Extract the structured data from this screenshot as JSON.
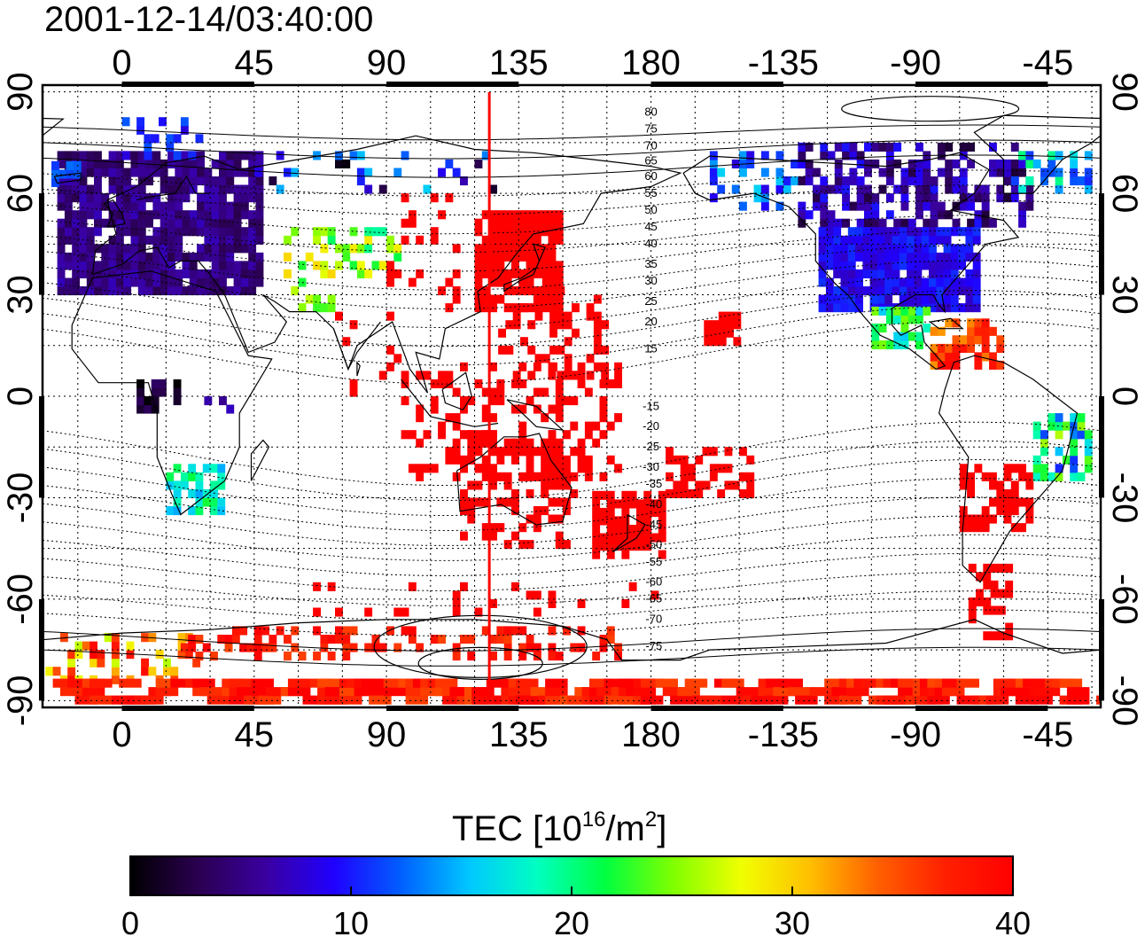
{
  "title": "2001-12-14/03:40:00",
  "map": {
    "lon_range": [
      -27,
      333
    ],
    "lat_range": [
      -92,
      92
    ],
    "top_lon_ticks": [
      {
        "value": 0,
        "label": "0"
      },
      {
        "value": 45,
        "label": "45"
      },
      {
        "value": 90,
        "label": "90"
      },
      {
        "value": 135,
        "label": "135"
      },
      {
        "value": 180,
        "label": "180"
      },
      {
        "value": 225,
        "label": "-135"
      },
      {
        "value": 270,
        "label": "-90"
      },
      {
        "value": 315,
        "label": "-45"
      }
    ],
    "bottom_lon_ticks": [
      {
        "value": 0,
        "label": "0"
      },
      {
        "value": 45,
        "label": "45"
      },
      {
        "value": 90,
        "label": "90"
      },
      {
        "value": 135,
        "label": "135"
      },
      {
        "value": 180,
        "label": "180"
      },
      {
        "value": 225,
        "label": "-135"
      },
      {
        "value": 270,
        "label": "-90"
      },
      {
        "value": 315,
        "label": "-45"
      }
    ],
    "lat_ticks": [
      {
        "value": 90,
        "label": "90"
      },
      {
        "value": 60,
        "label": "60"
      },
      {
        "value": 30,
        "label": "30"
      },
      {
        "value": 0,
        "label": "0"
      },
      {
        "value": -30,
        "label": "-30"
      },
      {
        "value": -60,
        "label": "-60"
      },
      {
        "value": -90,
        "label": "-90"
      }
    ],
    "grid_step_deg": 15,
    "red_meridian_lon": 125,
    "magnetic_lat_labels": [
      {
        "text": "80",
        "lon": 180,
        "lat": 83
      },
      {
        "text": "75",
        "lon": 180,
        "lat": 78
      },
      {
        "text": "70",
        "lon": 180,
        "lat": 73
      },
      {
        "text": "65",
        "lon": 180,
        "lat": 68.5
      },
      {
        "text": "60",
        "lon": 180,
        "lat": 64
      },
      {
        "text": "55",
        "lon": 180,
        "lat": 59
      },
      {
        "text": "50",
        "lon": 180,
        "lat": 54
      },
      {
        "text": "45",
        "lon": 180,
        "lat": 49
      },
      {
        "text": "40",
        "lon": 180,
        "lat": 44
      },
      {
        "text": "35",
        "lon": 180,
        "lat": 38
      },
      {
        "text": "30",
        "lon": 180,
        "lat": 33
      },
      {
        "text": "25",
        "lon": 180,
        "lat": 27
      },
      {
        "text": "20",
        "lon": 180,
        "lat": 21
      },
      {
        "text": "15",
        "lon": 180,
        "lat": 13
      },
      {
        "text": "-15",
        "lon": 180,
        "lat": -4
      },
      {
        "text": "-20",
        "lon": 180,
        "lat": -10
      },
      {
        "text": "-25",
        "lon": 180,
        "lat": -16
      },
      {
        "text": "-30",
        "lon": 180,
        "lat": -22
      },
      {
        "text": "-35",
        "lon": 181,
        "lat": -27
      },
      {
        "text": "-40",
        "lon": 181,
        "lat": -33
      },
      {
        "text": "-45",
        "lon": 181,
        "lat": -39
      },
      {
        "text": "-50",
        "lon": 181,
        "lat": -45
      },
      {
        "text": "-55",
        "lon": 181,
        "lat": -50
      },
      {
        "text": "-60",
        "lon": 181,
        "lat": -56
      },
      {
        "text": "-65",
        "lon": 181,
        "lat": -61
      },
      {
        "text": "-70",
        "lon": 181,
        "lat": -67
      },
      {
        "text": "-75",
        "lon": 181,
        "lat": -75
      }
    ]
  },
  "colorbar": {
    "label_main": "TEC  [10",
    "label_sup1": "16",
    "label_mid": "/m",
    "label_sup2": "2",
    "label_end": "]",
    "min": 0,
    "max": 40,
    "ticks": [
      {
        "value": 0,
        "label": "0"
      },
      {
        "value": 10,
        "label": "10"
      },
      {
        "value": 20,
        "label": "20"
      },
      {
        "value": 30,
        "label": "30"
      },
      {
        "value": 40,
        "label": "40"
      }
    ],
    "colors": [
      "#000000",
      "#2a0050",
      "#3a00a0",
      "#2000ff",
      "#0060ff",
      "#00c8ff",
      "#00ffc0",
      "#00ff40",
      "#80ff00",
      "#f0ff00",
      "#ffc000",
      "#ff6000",
      "#ff2000",
      "#ff0000"
    ]
  },
  "tec_regions": [
    {
      "name": "europe",
      "lon": [
        -22,
        48
      ],
      "lat": [
        30,
        72
      ],
      "tec": 5,
      "spread": 2,
      "density": 0.85
    },
    {
      "name": "europe-north",
      "lon": [
        0,
        30
      ],
      "lat": [
        70,
        82
      ],
      "tec": 10,
      "spread": 2,
      "density": 0.35
    },
    {
      "name": "iceland",
      "lon": [
        -24,
        -14
      ],
      "lat": [
        62,
        68
      ],
      "tec": 12,
      "spread": 1,
      "density": 0.6
    },
    {
      "name": "middle-east",
      "lon": [
        55,
        72
      ],
      "lat": [
        25,
        50
      ],
      "tec": 26,
      "spread": 4,
      "density": 0.35
    },
    {
      "name": "central-asia",
      "lon": [
        70,
        95
      ],
      "lat": [
        35,
        50
      ],
      "tec": 24,
      "spread": 5,
      "density": 0.45
    },
    {
      "name": "siberia",
      "lon": [
        45,
        130
      ],
      "lat": [
        60,
        72
      ],
      "tec": 8,
      "spread": 8,
      "density": 0.12
    },
    {
      "name": "china",
      "lon": [
        90,
        115
      ],
      "lat": [
        25,
        60
      ],
      "tec": 40,
      "spread": 0,
      "density": 0.25
    },
    {
      "name": "japan",
      "lon": [
        120,
        150
      ],
      "lat": [
        25,
        55
      ],
      "tec": 40,
      "spread": 0,
      "density": 0.85
    },
    {
      "name": "pacific-nw",
      "lon": [
        128,
        165
      ],
      "lat": [
        5,
        35
      ],
      "tec": 40,
      "spread": 0,
      "density": 0.3
    },
    {
      "name": "indonesia",
      "lon": [
        95,
        170
      ],
      "lat": [
        -25,
        10
      ],
      "tec": 40,
      "spread": 0,
      "density": 0.35
    },
    {
      "name": "australia",
      "lon": [
        115,
        155
      ],
      "lat": [
        -45,
        -10
      ],
      "tec": 40,
      "spread": 0,
      "density": 0.45
    },
    {
      "name": "new-zealand",
      "lon": [
        160,
        185
      ],
      "lat": [
        -48,
        -28
      ],
      "tec": 40,
      "spread": 0,
      "density": 0.75
    },
    {
      "name": "pacific-islands",
      "lon": [
        185,
        215
      ],
      "lat": [
        -30,
        -15
      ],
      "tec": 40,
      "spread": 0,
      "density": 0.45
    },
    {
      "name": "hawaii",
      "lon": [
        198,
        210
      ],
      "lat": [
        15,
        25
      ],
      "tec": 40,
      "spread": 0,
      "density": 0.8
    },
    {
      "name": "africa-central",
      "lon": [
        5,
        18
      ],
      "lat": [
        -5,
        5
      ],
      "tec": 2,
      "spread": 2,
      "density": 0.6
    },
    {
      "name": "africa-east",
      "lon": [
        28,
        40
      ],
      "lat": [
        -5,
        0
      ],
      "tec": 8,
      "spread": 3,
      "density": 0.4
    },
    {
      "name": "south-africa",
      "lon": [
        15,
        35
      ],
      "lat": [
        -35,
        -22
      ],
      "tec": 18,
      "spread": 4,
      "density": 0.7
    },
    {
      "name": "india",
      "lon": [
        70,
        95
      ],
      "lat": [
        0,
        25
      ],
      "tec": 40,
      "spread": 0,
      "density": 0.12
    },
    {
      "name": "alaska",
      "lon": [
        200,
        230
      ],
      "lat": [
        55,
        72
      ],
      "tec": 12,
      "spread": 4,
      "density": 0.35
    },
    {
      "name": "canada",
      "lon": [
        230,
        310
      ],
      "lat": [
        50,
        75
      ],
      "tec": 6,
      "spread": 4,
      "density": 0.55
    },
    {
      "name": "greenland",
      "lon": [
        300,
        330
      ],
      "lat": [
        60,
        72
      ],
      "tec": 15,
      "spread": 6,
      "density": 0.35
    },
    {
      "name": "usa",
      "lon": [
        237,
        290
      ],
      "lat": [
        25,
        50
      ],
      "tec": 9,
      "spread": 2,
      "density": 0.9
    },
    {
      "name": "mexico",
      "lon": [
        255,
        275
      ],
      "lat": [
        14,
        25
      ],
      "tec": 20,
      "spread": 5,
      "density": 0.7
    },
    {
      "name": "caribbean",
      "lon": [
        275,
        300
      ],
      "lat": [
        8,
        22
      ],
      "tec": 36,
      "spread": 4,
      "density": 0.65
    },
    {
      "name": "south-america",
      "lon": [
        285,
        310
      ],
      "lat": [
        -40,
        -20
      ],
      "tec": 40,
      "spread": 0,
      "density": 0.55
    },
    {
      "name": "brazil",
      "lon": [
        310,
        330
      ],
      "lat": [
        -25,
        -5
      ],
      "tec": 18,
      "spread": 8,
      "density": 0.6
    },
    {
      "name": "patagonia",
      "lon": [
        288,
        303
      ],
      "lat": [
        -72,
        -48
      ],
      "tec": 40,
      "spread": 0,
      "density": 0.45
    },
    {
      "name": "southern-ocean",
      "lon": [
        65,
        190
      ],
      "lat": [
        -65,
        -55
      ],
      "tec": 40,
      "spread": 0,
      "density": 0.08
    },
    {
      "name": "antarctic-west",
      "lon": [
        -26,
        25
      ],
      "lat": [
        -85,
        -70
      ],
      "tec": 33,
      "spread": 7,
      "density": 0.3
    },
    {
      "name": "antarctic-coast",
      "lon": [
        20,
        170
      ],
      "lat": [
        -78,
        -68
      ],
      "tec": 38,
      "spread": 3,
      "density": 0.35
    },
    {
      "name": "antarctic-pole",
      "lon": [
        -26,
        333
      ],
      "lat": [
        -91,
        -84
      ],
      "tec": 38,
      "spread": 3,
      "density": 0.45
    }
  ]
}
